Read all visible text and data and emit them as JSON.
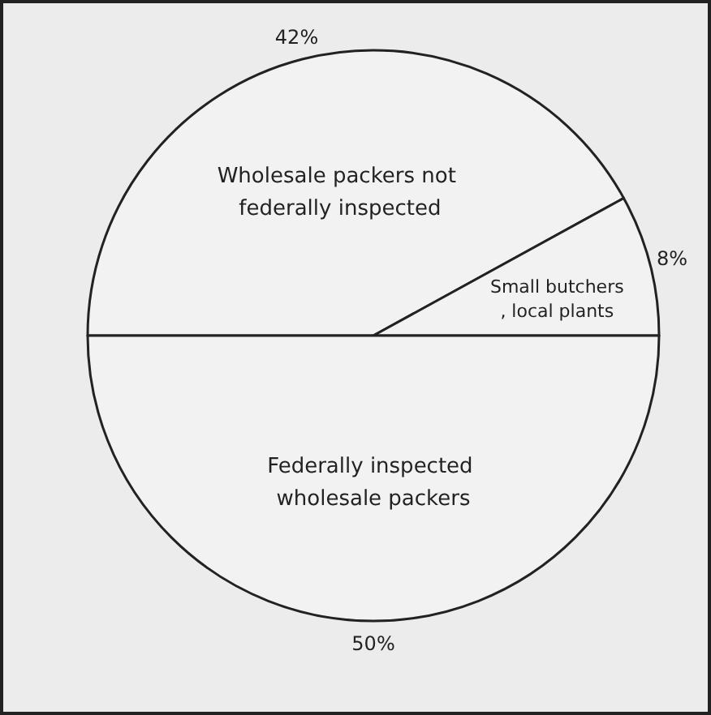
{
  "chart_data": {
    "type": "pie",
    "categories": [
      "Wholesale packers not federally inspected",
      "Small butchers, local plants",
      "Federally inspected wholesale packers"
    ],
    "values": [
      42,
      8,
      50
    ],
    "colors": [
      "#f2f2f2",
      "#f2f2f2",
      "#f2f2f2"
    ],
    "value_labels": [
      "42%",
      "8%",
      "50%"
    ],
    "legend": false
  }
}
